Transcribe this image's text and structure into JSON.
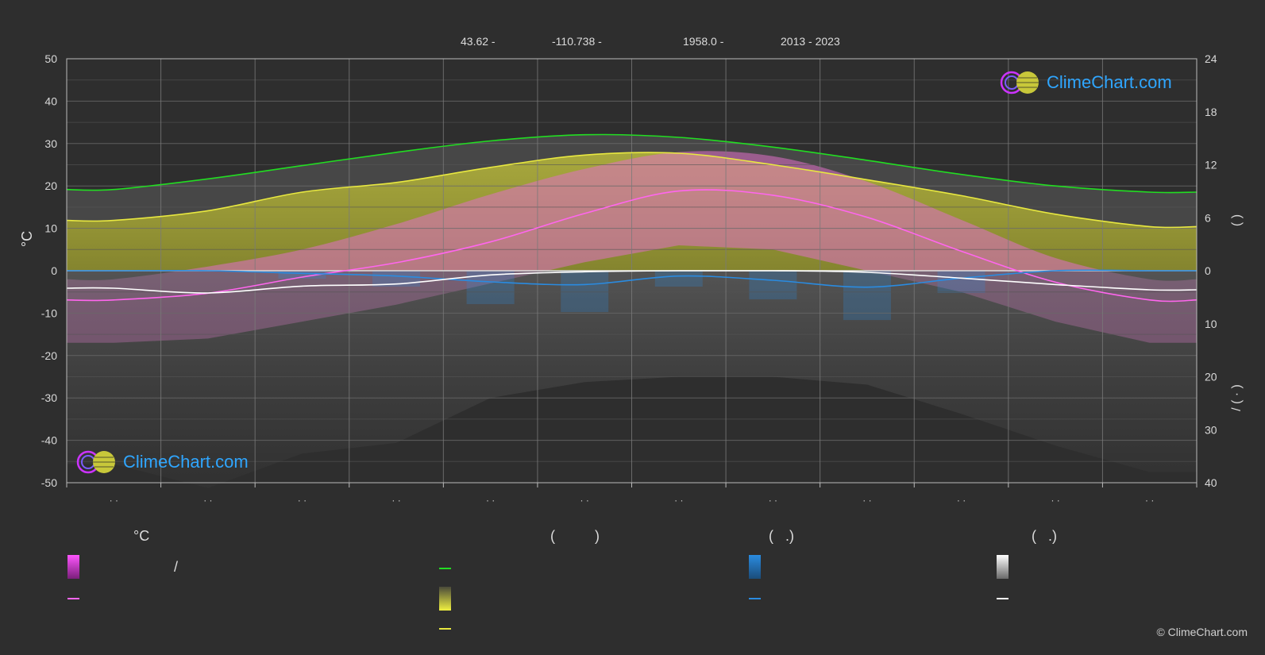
{
  "header": {
    "lat": "43.62 -",
    "lon": "-110.738 -",
    "elev": "1958.0 -",
    "years": "2013 - 2023"
  },
  "brand": {
    "logo_text": "ClimeChart.com",
    "copyright": "© ClimeChart.com"
  },
  "legend": {
    "col1_head": "°C",
    "col2_head": "(          )",
    "col3_head": "(   .)",
    "col4_head": "(   .)",
    "slash": "/"
  },
  "colors": {
    "background": "#2e2e2e",
    "daylight": "#22dd22",
    "sunshine": "#e8e840",
    "temp_mean": "#ff66ee",
    "rain": "#2a8be0",
    "snow": "#ffffff"
  },
  "chart_data": {
    "type": "line",
    "x": [
      0.5,
      1.5,
      2.5,
      3.5,
      4.5,
      5.5,
      6.5,
      7.5,
      8.5,
      9.5,
      10.5,
      11.5
    ],
    "xlim": [
      0,
      12
    ],
    "x_tick_labels": [
      "· ·",
      "· ·",
      "· ·",
      "· ·",
      "· ·",
      "· ·",
      "· ·",
      "· ·",
      "· ·",
      "· ·",
      "· ·",
      "· ·"
    ],
    "ylabel": "°C",
    "ylim": [
      -50,
      50
    ],
    "y_ticks": [
      50,
      40,
      30,
      20,
      10,
      0,
      -10,
      -20,
      -30,
      -40,
      -50
    ],
    "y2_ticks_upper": [
      24,
      18,
      12,
      6,
      0
    ],
    "y2_ticks_lower": [
      10,
      20,
      30,
      40
    ],
    "y2_label_upper": "(    )",
    "y2_label_lower": "/ (  ·  )",
    "series": [
      {
        "key": "daylight",
        "values": [
          9.2,
          10.4,
          11.9,
          13.4,
          14.7,
          15.4,
          15.1,
          14.0,
          12.5,
          10.9,
          9.6,
          8.9
        ]
      },
      {
        "key": "sunshine",
        "values": [
          5.7,
          6.8,
          8.9,
          10.0,
          11.7,
          13.1,
          13.3,
          12.0,
          10.3,
          8.5,
          6.4,
          5.0
        ]
      },
      {
        "key": "temp_mean",
        "values": [
          -6.9,
          -5.3,
          -1.5,
          1.9,
          6.8,
          13.5,
          18.8,
          17.8,
          12.6,
          4.6,
          -2.7,
          -6.9
        ]
      },
      {
        "key": "rain",
        "values": [
          0,
          0,
          0.5,
          1.0,
          2.1,
          2.6,
          1.0,
          1.8,
          3.1,
          1.4,
          0,
          0
        ]
      },
      {
        "key": "snow",
        "values": [
          3.3,
          4.2,
          2.9,
          2.5,
          0.8,
          0.2,
          0,
          0,
          0.3,
          1.4,
          2.6,
          3.6
        ]
      }
    ],
    "bands": {
      "temp_range_max": [
        -2,
        1,
        5,
        11,
        18,
        24,
        28,
        27,
        21,
        12,
        3,
        -2
      ],
      "temp_range_min": [
        -17,
        -16,
        -12,
        -8,
        -3,
        2,
        6,
        5,
        0,
        -5,
        -12,
        -17
      ]
    }
  }
}
